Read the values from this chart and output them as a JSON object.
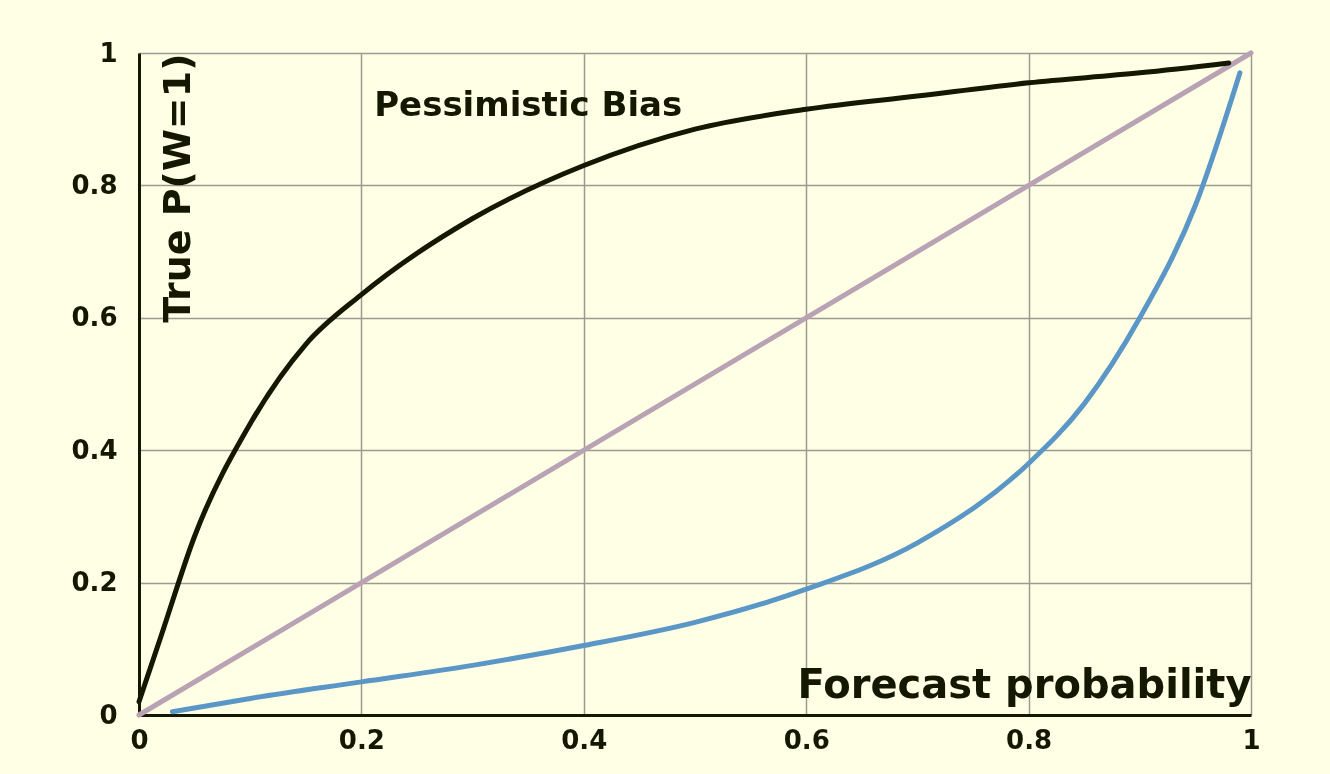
{
  "chart_data": {
    "type": "line",
    "xlabel": "Forecast probability",
    "ylabel": "True P(W=1)",
    "xlim": [
      0,
      1
    ],
    "ylim": [
      0,
      1
    ],
    "xticks": [
      0,
      0.2,
      0.4,
      0.6,
      0.8,
      1
    ],
    "yticks": [
      0,
      0.2,
      0.4,
      0.6,
      0.8,
      1
    ],
    "grid": true,
    "legend": false,
    "series": [
      {
        "color": "#b9a2b4",
        "x": [
          0,
          1
        ],
        "values": [
          0,
          1
        ]
      },
      {
        "color": "#5b97c6",
        "x": [
          0.03,
          0.1,
          0.2,
          0.3,
          0.4,
          0.5,
          0.6,
          0.7,
          0.8,
          0.85,
          0.9,
          0.95,
          0.99
        ],
        "values": [
          0.005,
          0.025,
          0.05,
          0.075,
          0.105,
          0.14,
          0.19,
          0.26,
          0.38,
          0.47,
          0.6,
          0.77,
          0.97
        ]
      },
      {
        "name": "Pessimistic Bias",
        "color": "#141800",
        "x": [
          0,
          0.02,
          0.05,
          0.1,
          0.15,
          0.2,
          0.3,
          0.4,
          0.5,
          0.6,
          0.7,
          0.8,
          0.9,
          0.98
        ],
        "values": [
          0.02,
          0.12,
          0.27,
          0.44,
          0.56,
          0.635,
          0.75,
          0.83,
          0.885,
          0.915,
          0.935,
          0.955,
          0.97,
          0.985
        ]
      }
    ]
  }
}
